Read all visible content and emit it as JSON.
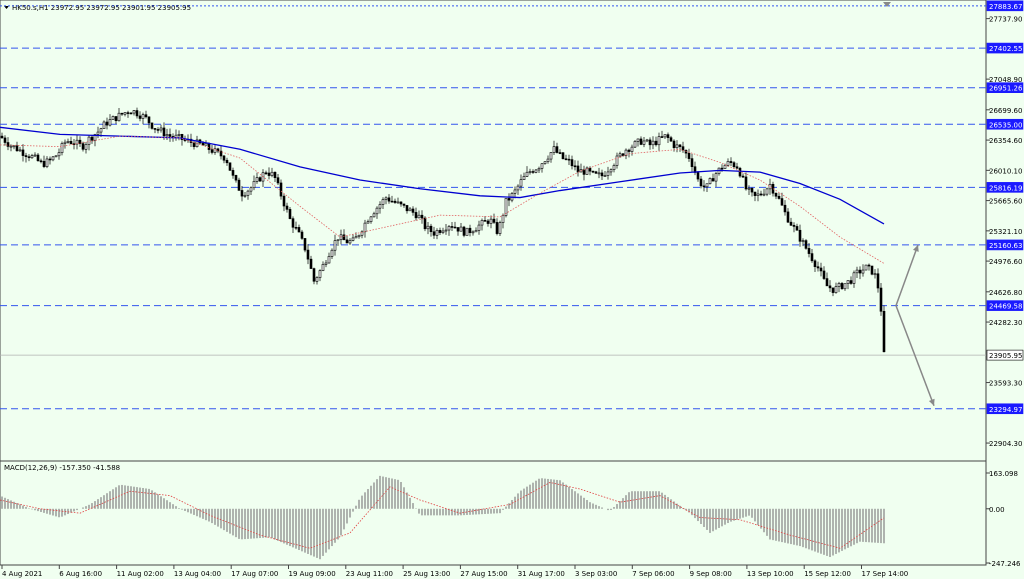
{
  "header": {
    "symbol_line": "HK50.s,H1  23972.95 23972.95 23901.95 23905.95"
  },
  "macd": {
    "label": "MACD(12,26,9) -157.350 -41.588",
    "axis_ticks": [
      "163.098",
      "0.00",
      "-247.246"
    ]
  },
  "colors": {
    "background": "#f0fff0",
    "candles": "#000000",
    "ma_slow": "#0000d0",
    "ma_fast": "#e06060",
    "level_lines": "#3355ee",
    "level_label_bg": "#1a1aff",
    "macd_hist": "#8a8a8a",
    "macd_signal": "#e04040",
    "arrows": "#888888"
  },
  "chart_data": {
    "type": "candlestick",
    "symbol": "HK50.s",
    "timeframe": "H1",
    "ohlc_current": {
      "open": 23972.95,
      "high": 23972.95,
      "low": 23901.95,
      "close": 23905.95
    },
    "ylim": [
      22700,
      27950
    ],
    "y_ticks": [
      "27737.90",
      "27048.90",
      "26699.60",
      "26354.60",
      "26010.10",
      "25665.60",
      "25321.10",
      "24976.60",
      "24626.80",
      "24282.30",
      "23593.30",
      "22904.30"
    ],
    "levels": [
      "27883.67",
      "27402.55",
      "26951.26",
      "26535.00",
      "25816.19",
      "25160.63",
      "24469.58",
      "23905.95",
      "23294.97"
    ],
    "x_tick_labels": [
      "4 Aug 2021",
      "6 Aug 16:00",
      "11 Aug 02:00",
      "13 Aug 04:00",
      "17 Aug 07:00",
      "19 Aug 09:00",
      "23 Aug 11:00",
      "25 Aug 13:00",
      "27 Aug 15:00",
      "31 Aug 17:00",
      "3 Sep 03:00",
      "7 Sep 06:00",
      "9 Sep 08:00",
      "13 Sep 10:00",
      "15 Sep 12:00",
      "17 Sep 14:00"
    ],
    "close_path": [
      [
        0,
        26400
      ],
      [
        10,
        26300
      ],
      [
        18,
        26250
      ],
      [
        26,
        26200
      ],
      [
        34,
        26150
      ],
      [
        42,
        26080
      ],
      [
        50,
        26120
      ],
      [
        58,
        26200
      ],
      [
        66,
        26350
      ],
      [
        74,
        26330
      ],
      [
        82,
        26280
      ],
      [
        90,
        26380
      ],
      [
        98,
        26450
      ],
      [
        106,
        26550
      ],
      [
        114,
        26600
      ],
      [
        122,
        26650
      ],
      [
        130,
        26700
      ],
      [
        138,
        26660
      ],
      [
        146,
        26600
      ],
      [
        154,
        26500
      ],
      [
        162,
        26450
      ],
      [
        170,
        26400
      ],
      [
        178,
        26380
      ],
      [
        186,
        26350
      ],
      [
        194,
        26320
      ],
      [
        202,
        26300
      ],
      [
        210,
        26250
      ],
      [
        218,
        26200
      ],
      [
        226,
        26150
      ],
      [
        234,
        25900
      ],
      [
        242,
        25750
      ],
      [
        250,
        25800
      ],
      [
        258,
        25900
      ],
      [
        266,
        26000
      ],
      [
        274,
        25950
      ],
      [
        282,
        25700
      ],
      [
        290,
        25450
      ],
      [
        298,
        25300
      ],
      [
        306,
        25100
      ],
      [
        314,
        24750
      ],
      [
        322,
        24900
      ],
      [
        330,
        25100
      ],
      [
        338,
        25250
      ],
      [
        346,
        25200
      ],
      [
        354,
        25200
      ],
      [
        362,
        25350
      ],
      [
        370,
        25500
      ],
      [
        378,
        25600
      ],
      [
        386,
        25700
      ],
      [
        394,
        25650
      ],
      [
        402,
        25600
      ],
      [
        410,
        25550
      ],
      [
        418,
        25500
      ],
      [
        426,
        25350
      ],
      [
        434,
        25300
      ],
      [
        442,
        25350
      ],
      [
        450,
        25400
      ],
      [
        458,
        25350
      ],
      [
        466,
        25300
      ],
      [
        474,
        25350
      ],
      [
        482,
        25400
      ],
      [
        490,
        25450
      ],
      [
        498,
        25300
      ],
      [
        506,
        25650
      ],
      [
        514,
        25750
      ],
      [
        522,
        25900
      ],
      [
        530,
        26000
      ],
      [
        538,
        26050
      ],
      [
        546,
        26150
      ],
      [
        554,
        26250
      ],
      [
        562,
        26150
      ],
      [
        570,
        26100
      ],
      [
        578,
        26000
      ],
      [
        586,
        26000
      ],
      [
        594,
        25950
      ],
      [
        602,
        25950
      ],
      [
        610,
        26050
      ],
      [
        618,
        26150
      ],
      [
        626,
        26250
      ],
      [
        634,
        26300
      ],
      [
        642,
        26350
      ],
      [
        650,
        26300
      ],
      [
        658,
        26350
      ],
      [
        666,
        26400
      ],
      [
        674,
        26300
      ],
      [
        682,
        26250
      ],
      [
        690,
        26150
      ],
      [
        698,
        25900
      ],
      [
        706,
        25800
      ],
      [
        714,
        25950
      ],
      [
        722,
        26050
      ],
      [
        730,
        26100
      ],
      [
        738,
        26050
      ],
      [
        746,
        25800
      ],
      [
        754,
        25700
      ],
      [
        762,
        25750
      ],
      [
        770,
        25850
      ],
      [
        778,
        25700
      ],
      [
        786,
        25500
      ],
      [
        794,
        25350
      ],
      [
        802,
        25200
      ],
      [
        810,
        25050
      ],
      [
        818,
        24900
      ],
      [
        826,
        24700
      ],
      [
        834,
        24650
      ],
      [
        842,
        24700
      ],
      [
        850,
        24750
      ],
      [
        858,
        24850
      ],
      [
        866,
        24900
      ],
      [
        874,
        24850
      ],
      [
        880,
        24600
      ],
      [
        884,
        23905.95
      ]
    ],
    "ma_slow_path": [
      [
        0,
        26500
      ],
      [
        60,
        26420
      ],
      [
        120,
        26400
      ],
      [
        180,
        26380
      ],
      [
        240,
        26250
      ],
      [
        300,
        26050
      ],
      [
        360,
        25900
      ],
      [
        420,
        25800
      ],
      [
        480,
        25720
      ],
      [
        520,
        25700
      ],
      [
        560,
        25780
      ],
      [
        620,
        25880
      ],
      [
        680,
        25980
      ],
      [
        720,
        26010
      ],
      [
        760,
        25990
      ],
      [
        800,
        25860
      ],
      [
        840,
        25680
      ],
      [
        884,
        25400
      ]
    ],
    "ma_fast_path": [
      [
        0,
        26300
      ],
      [
        60,
        26280
      ],
      [
        120,
        26400
      ],
      [
        180,
        26380
      ],
      [
        240,
        26150
      ],
      [
        300,
        25600
      ],
      [
        340,
        25250
      ],
      [
        380,
        25350
      ],
      [
        440,
        25500
      ],
      [
        500,
        25480
      ],
      [
        540,
        25750
      ],
      [
        580,
        26000
      ],
      [
        630,
        26200
      ],
      [
        680,
        26250
      ],
      [
        720,
        26100
      ],
      [
        760,
        25900
      ],
      [
        800,
        25600
      ],
      [
        840,
        25250
      ],
      [
        884,
        24950
      ]
    ],
    "macd_hist_path": [
      [
        0,
        60
      ],
      [
        30,
        0
      ],
      [
        60,
        -40
      ],
      [
        90,
        20
      ],
      [
        120,
        110
      ],
      [
        150,
        90
      ],
      [
        180,
        0
      ],
      [
        210,
        -60
      ],
      [
        240,
        -140
      ],
      [
        270,
        -130
      ],
      [
        300,
        -190
      ],
      [
        320,
        -230
      ],
      [
        340,
        -130
      ],
      [
        360,
        50
      ],
      [
        380,
        150
      ],
      [
        400,
        130
      ],
      [
        420,
        -30
      ],
      [
        460,
        -30
      ],
      [
        500,
        -20
      ],
      [
        520,
        80
      ],
      [
        540,
        140
      ],
      [
        560,
        130
      ],
      [
        590,
        30
      ],
      [
        610,
        -10
      ],
      [
        630,
        80
      ],
      [
        660,
        80
      ],
      [
        690,
        -20
      ],
      [
        710,
        -110
      ],
      [
        730,
        -60
      ],
      [
        750,
        -30
      ],
      [
        770,
        -140
      ],
      [
        800,
        -170
      ],
      [
        830,
        -220
      ],
      [
        860,
        -150
      ],
      [
        884,
        -157.35
      ]
    ],
    "macd_signal_path": [
      [
        0,
        40
      ],
      [
        40,
        0
      ],
      [
        80,
        -20
      ],
      [
        130,
        80
      ],
      [
        170,
        60
      ],
      [
        210,
        -30
      ],
      [
        260,
        -120
      ],
      [
        310,
        -180
      ],
      [
        350,
        -110
      ],
      [
        390,
        100
      ],
      [
        420,
        40
      ],
      [
        460,
        -20
      ],
      [
        510,
        20
      ],
      [
        550,
        120
      ],
      [
        580,
        90
      ],
      [
        620,
        30
      ],
      [
        660,
        60
      ],
      [
        700,
        -40
      ],
      [
        740,
        -50
      ],
      [
        790,
        -120
      ],
      [
        840,
        -180
      ],
      [
        884,
        -41.588
      ]
    ]
  }
}
